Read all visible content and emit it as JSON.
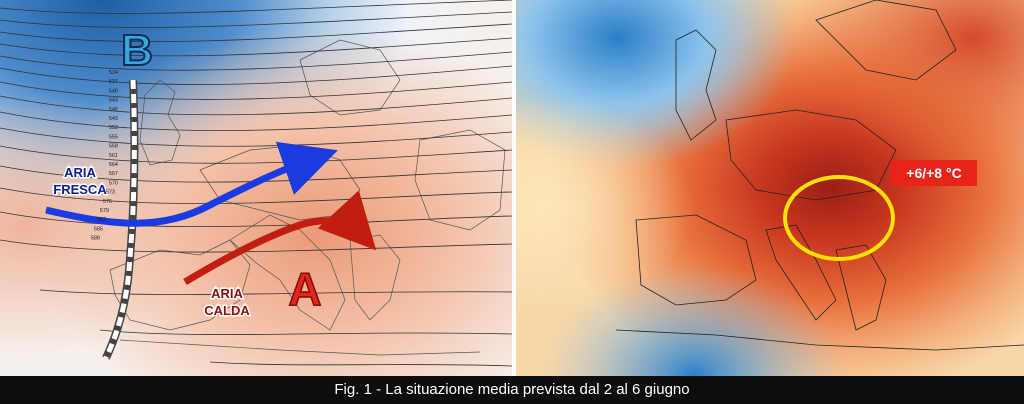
{
  "left_map": {
    "low_label": "B",
    "high_label": "A",
    "cool_air_label_line1": "ARIA",
    "cool_air_label_line2": "FRESCA",
    "warm_air_label_line1": "ARIA",
    "warm_air_label_line2": "CALDA",
    "isohypse_labels": [
      "534",
      "537",
      "540",
      "543",
      "546",
      "549",
      "552",
      "555",
      "558",
      "561",
      "564",
      "567",
      "570",
      "573",
      "576",
      "579",
      "582",
      "585",
      "588"
    ],
    "colors": {
      "cold": "#3a78b8",
      "warm": "#f0b49a",
      "cool_arrow": "#1a3be0",
      "warm_arrow": "#c21d10",
      "high_label": "#e8231a",
      "low_label": "#3aa6e0"
    }
  },
  "right_map": {
    "anomaly_label": "+6/+8 °C",
    "colors": {
      "anomaly_box": "#e8231a",
      "highlight_circle": "#ffe000",
      "hot": "#c0301e",
      "cold": "#2a7fc8"
    }
  },
  "caption": "Fig. 1 - La situazione media prevista dal 2 al 6 giugno"
}
